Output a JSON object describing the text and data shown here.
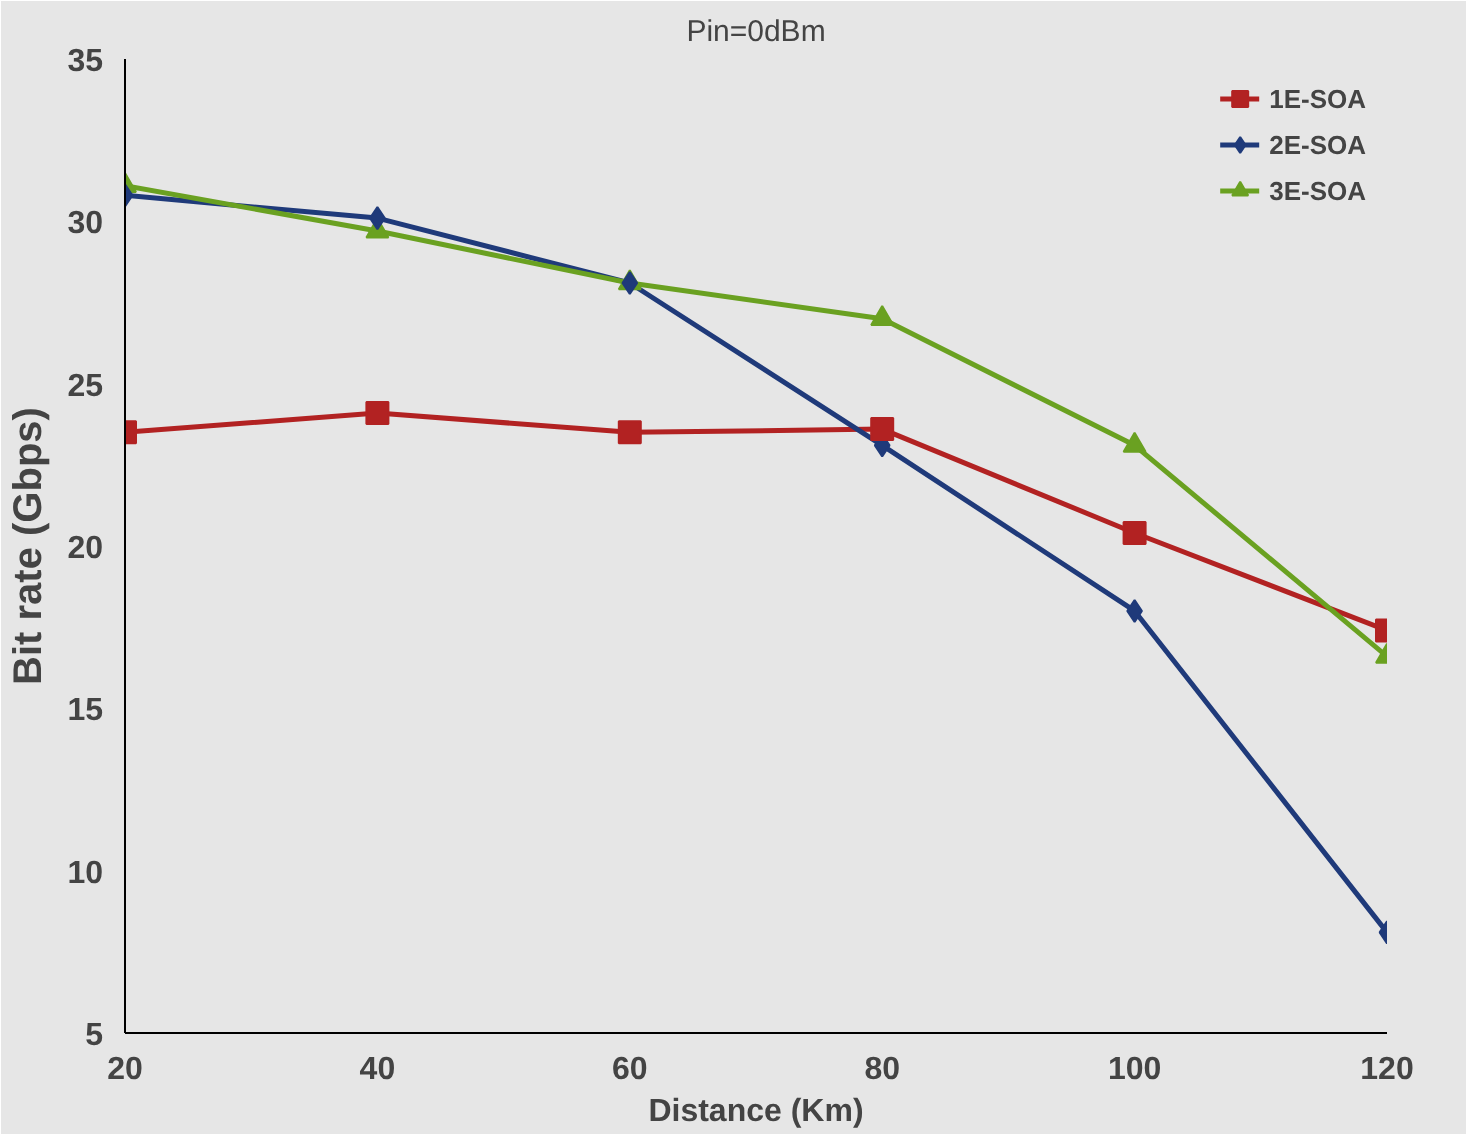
{
  "chart_data": {
    "type": "line",
    "title": "Pin=0dBm",
    "xlabel": "Distance (Km)",
    "ylabel": "Bit rate (Gbps)",
    "x": [
      20,
      40,
      60,
      80,
      100,
      120
    ],
    "series": [
      {
        "name": "1E-SOA",
        "color": "#b22222",
        "marker": "square",
        "values": [
          23.5,
          24.1,
          23.5,
          23.6,
          20.4,
          17.4
        ]
      },
      {
        "name": "2E-SOA",
        "color": "#1f3a7a",
        "marker": "diamond",
        "values": [
          30.8,
          30.1,
          28.1,
          23.1,
          18.0,
          8.1
        ]
      },
      {
        "name": "3E-SOA",
        "color": "#6aa121",
        "marker": "triangle",
        "values": [
          31.1,
          29.7,
          28.1,
          27.0,
          23.1,
          16.6
        ]
      }
    ],
    "xlim": [
      20,
      120
    ],
    "ylim": [
      5,
      35
    ],
    "xticks": [
      20,
      40,
      60,
      80,
      100,
      120
    ],
    "yticks": [
      5,
      10,
      15,
      20,
      25,
      30,
      35
    ],
    "legend": "top right",
    "line_style": "solid"
  }
}
